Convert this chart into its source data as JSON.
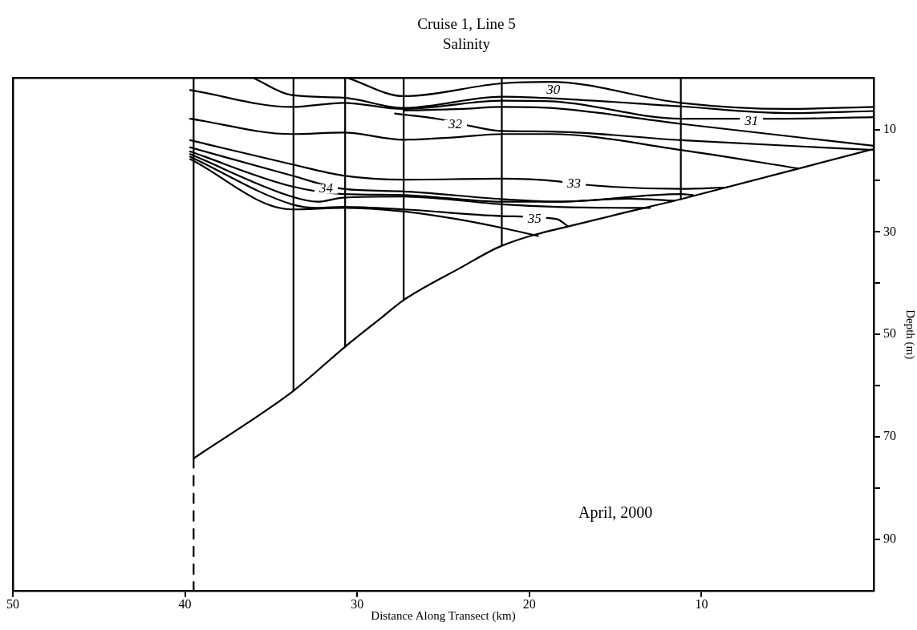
{
  "chart_data": {
    "type": "line",
    "title": "Cruise 1, Line 5",
    "subtitle": "Salinity",
    "xlabel": "Distance Along Transect (km)",
    "ylabel": "Depth (m)",
    "xlim": [
      50,
      0
    ],
    "ylim": [
      100,
      0
    ],
    "xticks": [
      50,
      40,
      30,
      20,
      10
    ],
    "yticks": [
      10,
      {
        "value": 20,
        "label": null
      },
      30,
      {
        "value": 40,
        "label": null
      },
      50,
      {
        "value": 60,
        "label": null
      },
      70,
      {
        "value": 80,
        "label": null
      },
      90
    ],
    "grid": false,
    "legend": false,
    "marker": "none",
    "line_style": "solid",
    "series": [
      {
        "color": "#000000",
        "x": [
          39.7,
          33.8,
          30.8,
          27.3,
          21.6,
          18.8,
          11.2,
          5,
          0
        ],
        "values": [
          2.3,
          5.6,
          4.8,
          6.0,
          4.4,
          4.5,
          7.9,
          7.9,
          7.6
        ]
      },
      {
        "color": "#000000",
        "x": [
          36,
          33.8,
          30.8,
          27.3,
          21.6,
          18.8,
          11.2,
          5,
          0
        ],
        "values": [
          0,
          3.3,
          3.8,
          5.8,
          3.6,
          3.9,
          5.5,
          6.8,
          6.4
        ]
      },
      {
        "color": "#000000",
        "x": [
          30.5,
          27.3,
          21.6,
          18.8,
          11.2,
          5,
          0
        ],
        "values": [
          0,
          3.5,
          1.0,
          0.7,
          4.8,
          6.0,
          5.6
        ]
      },
      {
        "color": "#000000",
        "x": [
          27.3,
          24,
          21.6,
          18.8,
          11.2,
          0
        ],
        "values": [
          6.3,
          6.0,
          5.6,
          5.8,
          8.9,
          13.2
        ]
      },
      {
        "color": "#000000",
        "x": [
          27.8,
          25.2,
          23.3,
          21.6,
          18.8,
          11.2,
          0
        ],
        "values": [
          6.9,
          8.0,
          9.4,
          10.3,
          10.4,
          12.1,
          14.0
        ]
      },
      {
        "color": "#000000",
        "x": [
          39.7,
          33.8,
          30.8,
          27.3,
          24.2,
          21.6,
          18.8,
          11.2,
          4.4
        ],
        "values": [
          7.9,
          10.9,
          10.6,
          12.0,
          11.5,
          10.9,
          10.9,
          14.0,
          17.6
        ]
      },
      {
        "color": "#000000",
        "x": [
          39.7,
          33.8,
          30.8,
          27.3,
          21.6,
          18.4,
          17.4,
          11.2,
          8.5
        ],
        "values": [
          12.1,
          16.8,
          19.0,
          19.8,
          19.6,
          20.1,
          20.6,
          21.6,
          21.3
        ]
      },
      {
        "color": "#000000",
        "x": [
          39.7,
          33.8,
          30.8,
          27.3,
          21.6,
          18.4,
          11.2,
          10.5
        ],
        "values": [
          13.5,
          19.0,
          21.6,
          22.1,
          23.6,
          24.1,
          22.6,
          22.8
        ]
      },
      {
        "color": "#000000",
        "x": [
          39.7,
          33.8,
          30.8,
          27.3,
          21.6,
          18.4,
          14.2,
          11.6
        ],
        "values": [
          14.3,
          21.1,
          22.6,
          22.8,
          24.1,
          24.1,
          23.5,
          23.9
        ]
      },
      {
        "color": "#000000",
        "x": [
          39.7,
          33.8,
          32.3,
          30.8,
          27.3,
          21.6,
          18.4,
          14.2,
          13
        ],
        "values": [
          14.8,
          23.1,
          24.1,
          23.3,
          23.1,
          24.6,
          25.1,
          25.3,
          25.3
        ]
      },
      {
        "color": "#000000",
        "x": [
          39.7,
          33.8,
          32.3,
          30.8,
          27.3,
          21.6,
          18.4,
          17.8
        ],
        "values": [
          15.3,
          24.6,
          25.3,
          25.1,
          25.6,
          26.9,
          27.5,
          28.8
        ]
      },
      {
        "color": "#000000",
        "x": [
          39.7,
          33.8,
          30.8,
          27.3,
          24.2,
          21.6,
          19.5
        ],
        "values": [
          15.8,
          25.6,
          25.3,
          26.0,
          27.5,
          29.2,
          30.8
        ]
      },
      {
        "color": "#000000",
        "x": [
          39.5,
          33.7,
          30.7,
          28.5,
          27.3,
          24,
          21.6,
          16,
          11.2,
          0
        ],
        "values": [
          74.2,
          61.0,
          52.4,
          46.5,
          43.3,
          37.0,
          32.7,
          27.5,
          23.6,
          13.8
        ]
      },
      {
        "color": "#000000",
        "x": [
          39.5,
          39.5
        ],
        "values": [
          0,
          74.2
        ]
      },
      {
        "color": "#000000",
        "x": [
          33.7,
          33.7
        ],
        "values": [
          0,
          61.0
        ]
      },
      {
        "color": "#000000",
        "x": [
          30.7,
          30.7
        ],
        "values": [
          0,
          52.4
        ]
      },
      {
        "color": "#000000",
        "x": [
          27.3,
          27.3
        ],
        "values": [
          0,
          43.3
        ]
      },
      {
        "color": "#000000",
        "x": [
          21.6,
          21.6
        ],
        "values": [
          0,
          32.7
        ]
      },
      {
        "color": "#000000",
        "x": [
          11.2,
          11.2
        ],
        "values": [
          0,
          23.6
        ]
      },
      {
        "color": "#000000",
        "line_style": "dashed",
        "x": [
          39.5,
          39.5
        ],
        "values": [
          74.2,
          100
        ]
      }
    ],
    "annotations": [
      {
        "text": "30",
        "x": 18.6,
        "y": 2.3
      },
      {
        "text": "31",
        "x": 7.1,
        "y": 8.4
      },
      {
        "text": "32",
        "x": 24.3,
        "y": 9.1
      },
      {
        "text": "33",
        "x": 17.4,
        "y": 20.6
      },
      {
        "text": "34",
        "x": 31.8,
        "y": 21.6
      },
      {
        "text": "35",
        "x": 19.7,
        "y": 27.5
      },
      "April, 2000"
    ]
  }
}
